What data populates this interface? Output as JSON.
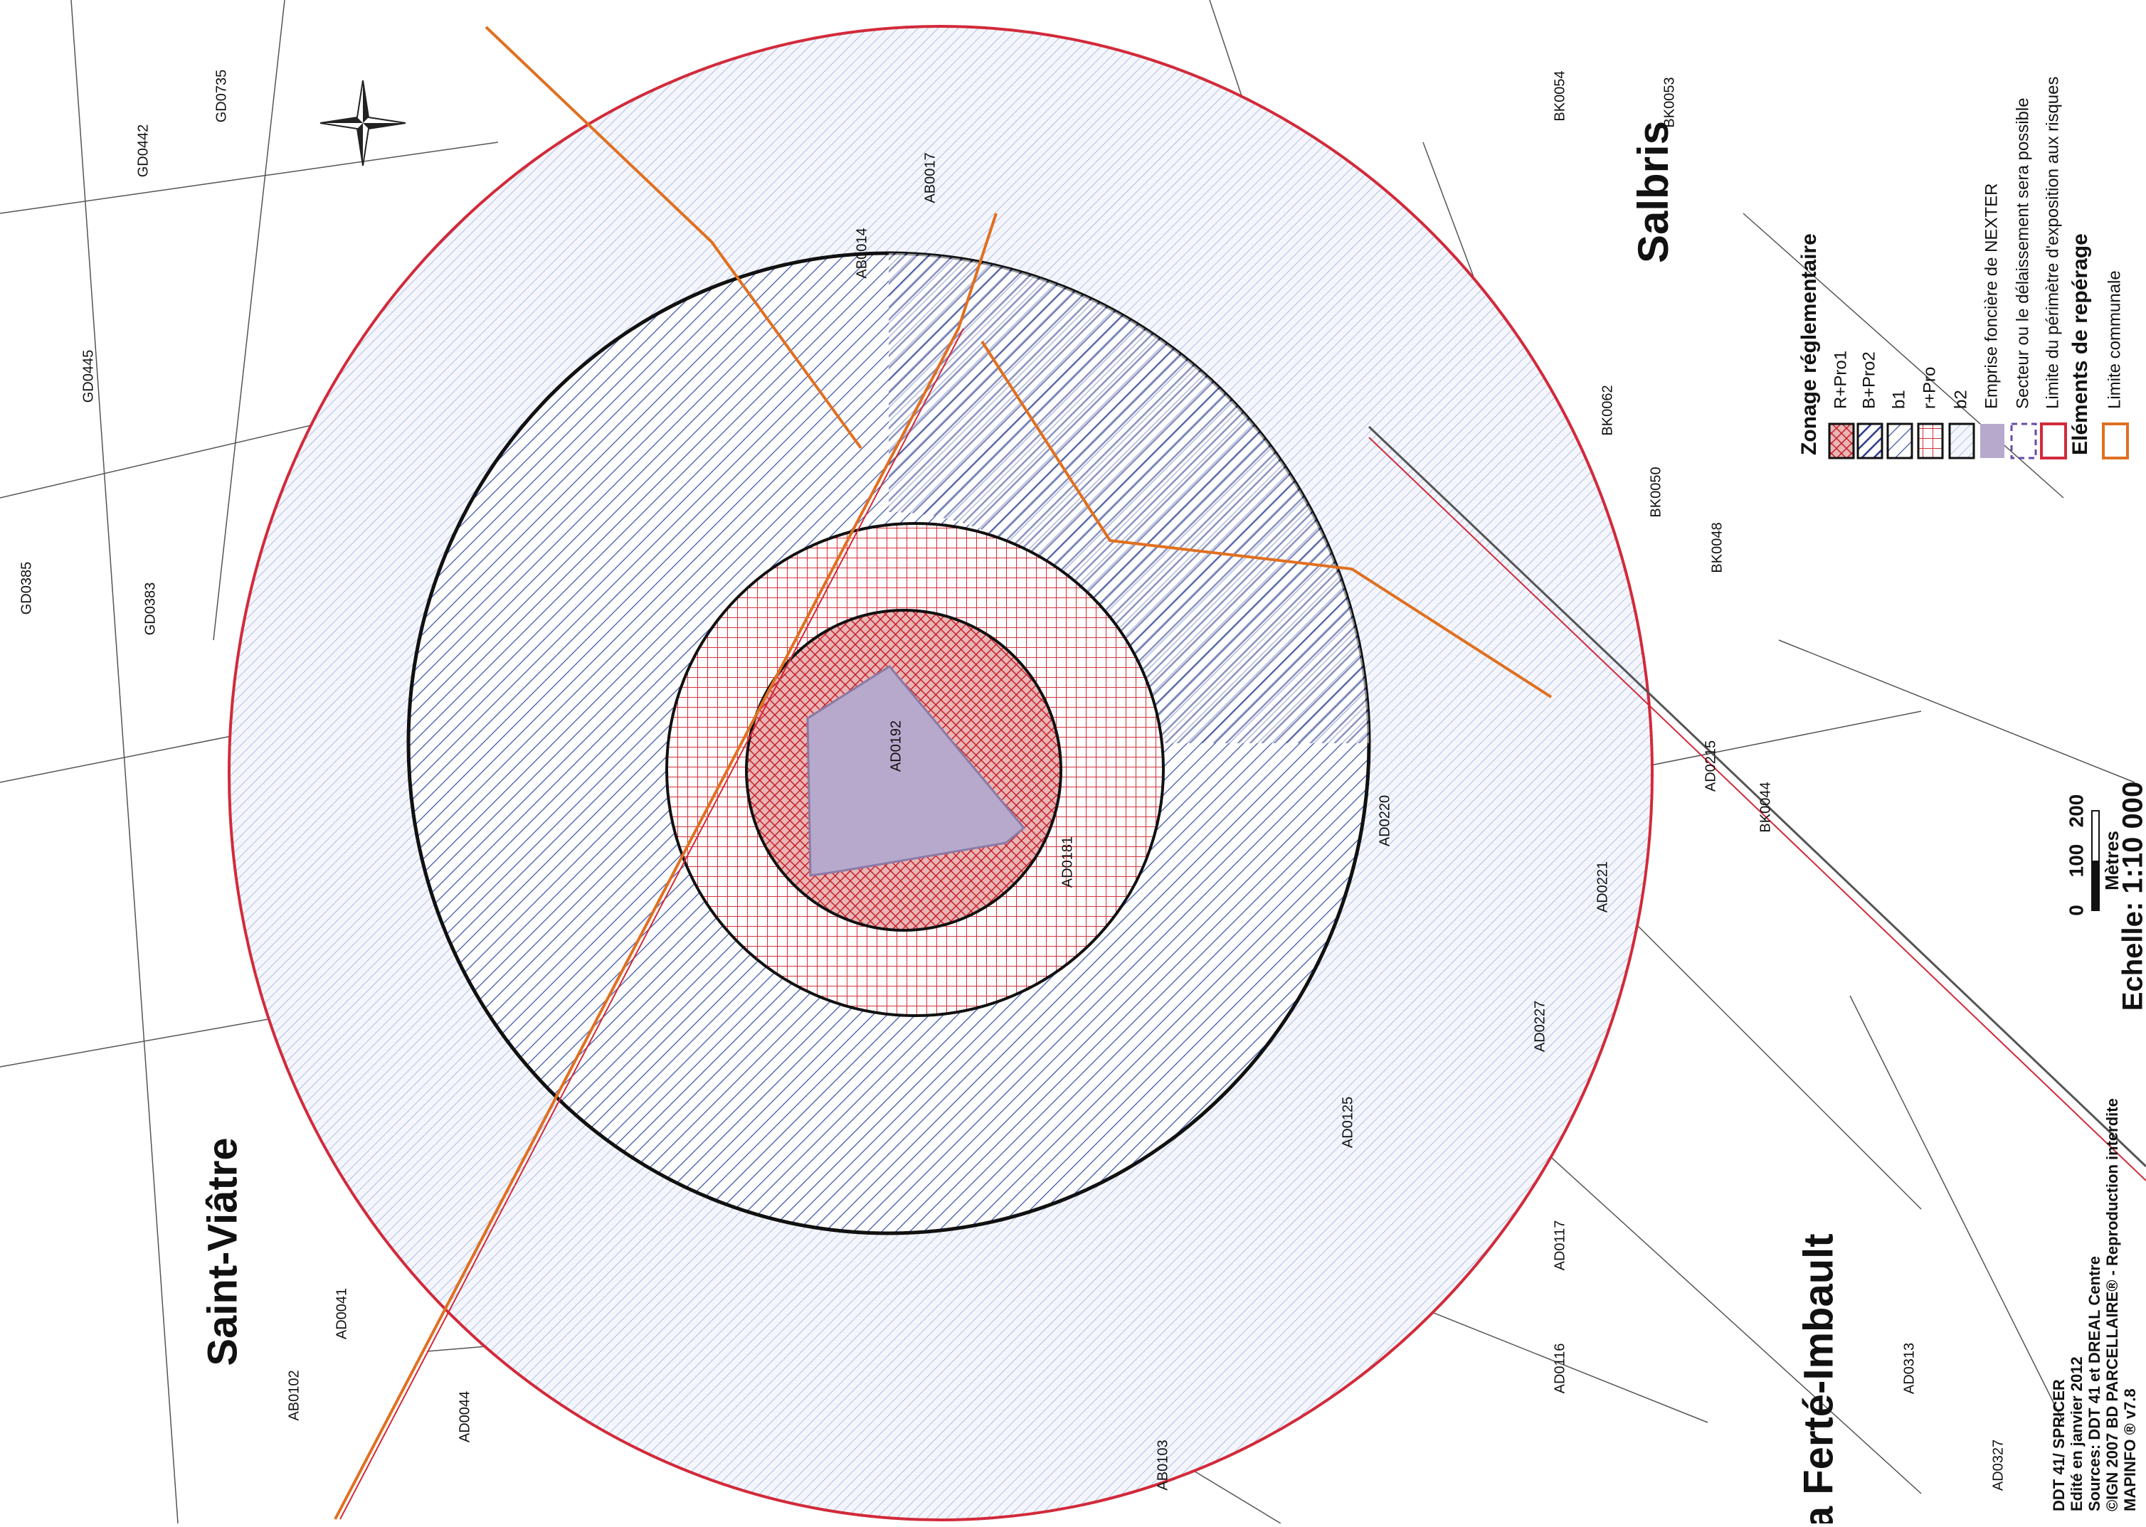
{
  "places": {
    "north": "Salbris",
    "west": "Saint-Viâtre",
    "south": "La Ferté-Imbault"
  },
  "legend": {
    "title": "Zonage réglementaire",
    "zones": [
      "R+Pro1",
      "B+Pro2",
      "b1",
      "r+Pro",
      "b2"
    ],
    "items": [
      "Emprise foncière de NEXTER",
      "Secteur ou le délaissement sera possible",
      "Limite du périmètre d'exposition aux risques"
    ],
    "subtitle": "Eléments de repérage",
    "subitems": [
      "Limite communale"
    ]
  },
  "scale": {
    "ticks": [
      "0",
      "100",
      "200"
    ],
    "unit": "Mètres",
    "label": "Echelle: 1:10 000"
  },
  "credits": [
    "DDT 41/ SPRICER",
    "Edité en janvier 2012",
    "Sources: DDT 41 et DREAL Centre",
    "©IGN 2007 BD PARCELLAIRE® - Reproduction interdite",
    "MAPINFO ® v7.8"
  ],
  "parcels": [
    "BK0054",
    "BK0053",
    "BK0062",
    "BK0050",
    "BK0048",
    "BK0044",
    "AD0215",
    "AD0220",
    "AD0221",
    "AD0227",
    "AD0125",
    "AD0117",
    "AD0116",
    "AD0313",
    "AD0327",
    "AB0102",
    "AB0103",
    "AD0041",
    "AD0044",
    "GD0383",
    "GD0385",
    "GD0445",
    "GD0442",
    "GD0735",
    "AD0192",
    "AD0181",
    "AB0017",
    "AB0014"
  ]
}
